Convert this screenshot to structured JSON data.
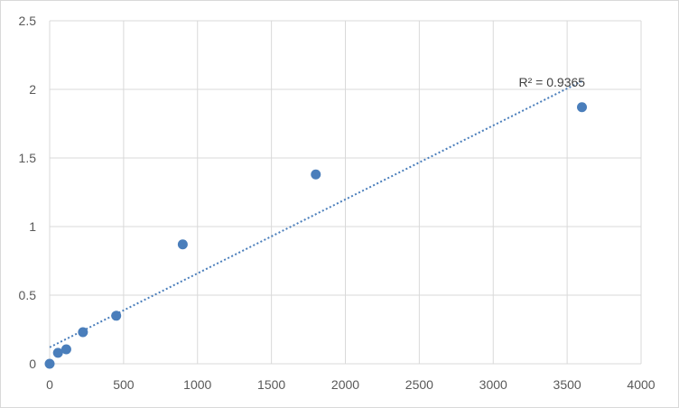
{
  "chart_data": {
    "type": "scatter",
    "x_ticks": [
      "0",
      "500",
      "1000",
      "1500",
      "2000",
      "2500",
      "3000",
      "3500",
      "4000"
    ],
    "y_ticks": [
      "0",
      "0.5",
      "1",
      "1.5",
      "2",
      "2.5"
    ],
    "xlim": [
      0,
      4000
    ],
    "ylim": [
      0,
      2.5
    ],
    "grid": true,
    "legend": "none",
    "series": [
      {
        "x": [
          0,
          56.25,
          112.5,
          225,
          450,
          900,
          1800,
          3600
        ],
        "y": [
          0.0,
          0.08,
          0.105,
          0.23,
          0.35,
          0.87,
          1.38,
          1.87
        ]
      }
    ],
    "trendline": {
      "type": "linear",
      "x": [
        0,
        3600
      ],
      "y": [
        0.12,
        2.06
      ],
      "label": "R² = 0.9365"
    },
    "colors": {
      "marker": "#4a7ebb",
      "trendline": "#4a7ebb",
      "grid": "#d9d9d9",
      "tick_text": "#595959"
    }
  }
}
